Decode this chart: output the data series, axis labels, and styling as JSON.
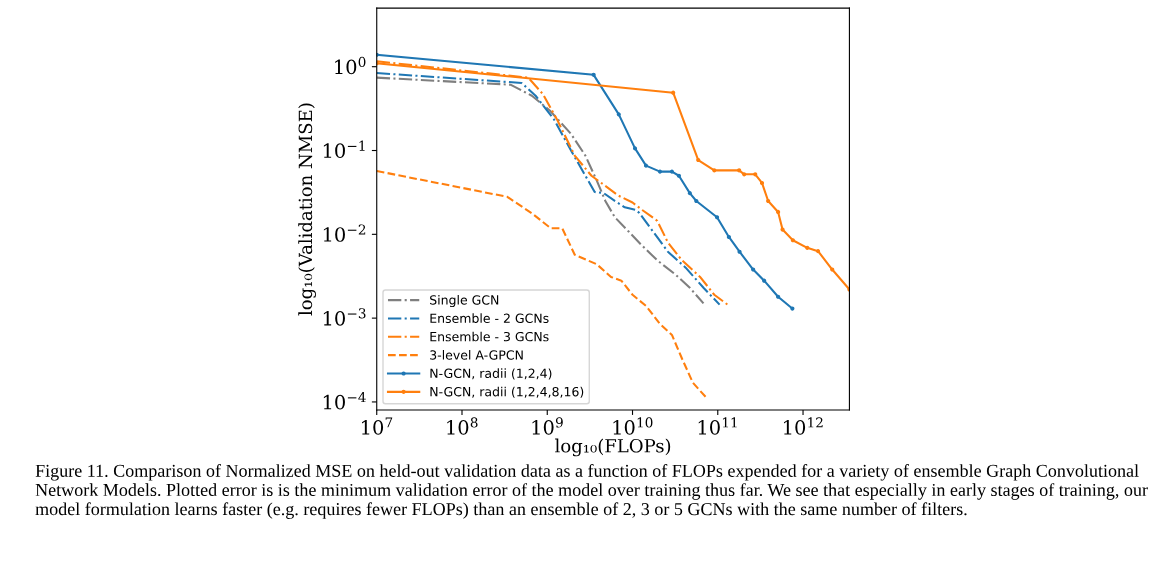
{
  "chart_data": {
    "type": "line",
    "log": "xy",
    "xlabel": "log₁₀(FLOPs)",
    "ylabel": "log₁₀(Validation NMSE)",
    "xlim": [
      10000000.0,
      3500000000000.0
    ],
    "ylim": [
      8e-05,
      5
    ],
    "xticks": [
      {
        "value": 10000000.0,
        "label": "10$^{7}$"
      },
      {
        "value": 100000000.0,
        "label": "10$^{8}$"
      },
      {
        "value": 1000000000.0,
        "label": "10$^{9}$"
      },
      {
        "value": 10000000000.0,
        "label": "10$^{10}$"
      },
      {
        "value": 100000000000.0,
        "label": "10$^{11}$"
      },
      {
        "value": 1000000000000.0,
        "label": "10$^{12}$"
      }
    ],
    "yticks": [
      {
        "value": 0.0001,
        "label": "10$^{−4}$"
      },
      {
        "value": 0.001,
        "label": "10$^{−3}$"
      },
      {
        "value": 0.01,
        "label": "10$^{−2}$"
      },
      {
        "value": 0.1,
        "label": "10$^{−1}$"
      },
      {
        "value": 1,
        "label": "10$^{0}$"
      }
    ],
    "grid": false,
    "legend": "bottom left",
    "series": [
      {
        "name": "Single GCN",
        "color": "#7f7f7f",
        "line_style": "dashdot",
        "marker": "none",
        "x": [
          10000000.0,
          370000000.0,
          660000000.0,
          1070000000.0,
          1900000000.0,
          2800000000.0,
          3800000000.0,
          4800000000.0,
          6200000000.0,
          9000000000.0,
          13000000000.0,
          19500000000.0,
          32000000000.0,
          47000000000.0,
          68000000000.0
        ],
        "values": [
          0.74,
          0.61,
          0.45,
          0.3,
          0.158,
          0.087,
          0.044,
          0.025,
          0.016,
          0.0108,
          0.0073,
          0.0049,
          0.0033,
          0.0023,
          0.0015
        ]
      },
      {
        "name": "Ensemble - 2 GCNs",
        "color": "#1f77b4",
        "line_style": "dashdot",
        "marker": "none",
        "x": [
          10000000.0,
          500000000.0,
          730000000.0,
          1200000000.0,
          1900000000.0,
          2800000000.0,
          3600000000.0,
          4600000000.0,
          6200000000.0,
          8100000000.0,
          11000000000.0,
          12000000000.0,
          18000000000.0,
          26000000000.0,
          42000000000.0,
          68000000000.0,
          105000000000.0
        ],
        "values": [
          0.84,
          0.64,
          0.45,
          0.235,
          0.1,
          0.05,
          0.032,
          0.031,
          0.025,
          0.021,
          0.0195,
          0.018,
          0.0103,
          0.0062,
          0.004,
          0.0023,
          0.00145
        ]
      },
      {
        "name": "Ensemble - 3 GCNs",
        "color": "#ff7f0e",
        "line_style": "dashdot",
        "marker": "none",
        "x": [
          10000000.0,
          600000000.0,
          890000000.0,
          1300000000.0,
          2100000000.0,
          3300000000.0,
          4600000000.0,
          6800000000.0,
          10000000000.0,
          13000000000.0,
          19500000000.0,
          26000000000.0,
          38000000000.0,
          62000000000.0,
          91000000000.0,
          130000000000.0
        ],
        "values": [
          1.16,
          0.74,
          0.47,
          0.235,
          0.087,
          0.05,
          0.039,
          0.029,
          0.024,
          0.0195,
          0.0145,
          0.008,
          0.0049,
          0.0031,
          0.0019,
          0.00145
        ]
      },
      {
        "name": "3-level A-GPCN",
        "color": "#ff7f0e",
        "line_style": "dashed",
        "marker": "none",
        "x": [
          10000000.0,
          340000000.0,
          660000000.0,
          1100000000.0,
          1500000000.0,
          2100000000.0,
          3800000000.0,
          5600000000.0,
          7400000000.0,
          10000000000.0,
          14500000000.0,
          21000000000.0,
          29000000000.0,
          38000000000.0,
          51000000000.0,
          76000000000.0
        ],
        "values": [
          0.057,
          0.028,
          0.0178,
          0.0118,
          0.0118,
          0.0057,
          0.0044,
          0.0031,
          0.0028,
          0.0019,
          0.00139,
          0.00085,
          0.00063,
          0.00033,
          0.00017,
          0.000108
        ]
      },
      {
        "name": "N-GCN, radii (1,2,4)",
        "color": "#1f77b4",
        "line_style": "solid",
        "marker": "circle",
        "x": [
          10000000.0,
          3500000000.0,
          6900000000.0,
          10700000000.0,
          14400000000.0,
          21000000000.0,
          29000000000.0,
          35000000000.0,
          47000000000.0,
          56000000000.0,
          98000000000.0,
          135000000000.0,
          180000000000.0,
          260000000000.0,
          350000000000.0,
          510000000000.0,
          750000000000.0
        ],
        "values": [
          1.39,
          0.8,
          0.27,
          0.106,
          0.066,
          0.056,
          0.056,
          0.05,
          0.031,
          0.025,
          0.016,
          0.0093,
          0.0062,
          0.0038,
          0.0028,
          0.0018,
          0.0013
        ]
      },
      {
        "name": "N-GCN, radii (1,2,4,8,16)",
        "color": "#ff7f0e",
        "line_style": "solid",
        "marker": "circle",
        "x": [
          10000000.0,
          30000000000.0,
          59000000000.0,
          91000000000.0,
          178000000000.0,
          204000000000.0,
          275000000000.0,
          330000000000.0,
          390000000000.0,
          510000000000.0,
          575000000000.0,
          760000000000.0,
          1120000000000.0,
          1500000000000.0,
          2200000000000.0,
          3500000000000.0
        ],
        "values": [
          1.1,
          0.49,
          0.077,
          0.058,
          0.058,
          0.052,
          0.052,
          0.041,
          0.025,
          0.0185,
          0.0114,
          0.0085,
          0.0069,
          0.0063,
          0.0038,
          0.0022
        ]
      }
    ],
    "annotations": [
      "Figure 11. Comparison of Normalized MSE on held-out validation data as a function of FLOPs expended for a variety of ensemble Graph Convolutional Network Models. Plotted error is is the minimum validation error of the model over training thus far. We see that especially in early stages of training, our model formulation learns faster (e.g. requires fewer FLOPs) than an ensemble of 2, 3 or 5 GCNs with the same number of filters."
    ]
  }
}
